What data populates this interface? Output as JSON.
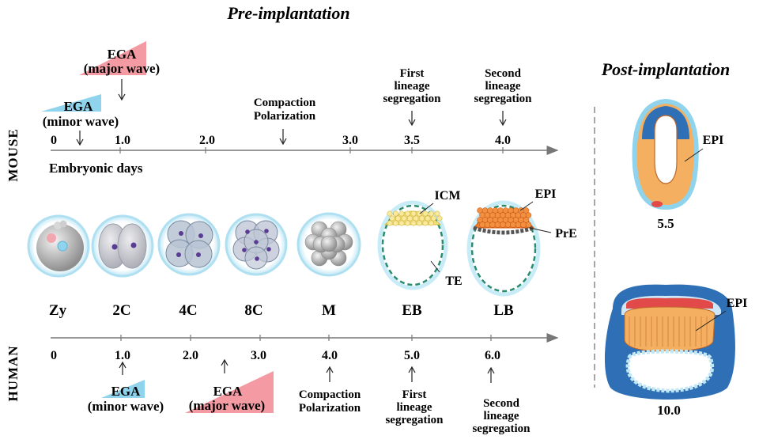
{
  "titles": {
    "pre": "Pre-implantation",
    "post": "Post-implantation"
  },
  "colors": {
    "egaMinor": "#8fd3ec",
    "egaMajor": "#f39aa3",
    "zonaRing": "#c8ecf7",
    "teDash": "#2a8c6e",
    "icm": "#f0dc7a",
    "epi": "#f08030",
    "pre": "#555555",
    "postBlue": "#2e6fb5",
    "postOrange": "#f4b060",
    "postRed": "#e24a4a"
  },
  "mouse": {
    "side_label": "MOUSE",
    "axis_label": "Embryonic days",
    "ticks": [
      "0",
      "1.0",
      "2.0",
      "3.0",
      "3.5",
      "4.0"
    ],
    "ega_minor": {
      "line1": "EGA",
      "line2": "(minor wave)"
    },
    "ega_major": {
      "line1": "EGA",
      "line2": "(major wave)"
    },
    "compaction": {
      "line1": "Compaction",
      "line2": "Polarization"
    },
    "first": {
      "line1": "First",
      "line2": "lineage",
      "line3": "segregation"
    },
    "second": {
      "line1": "Second",
      "line2": "lineage",
      "line3": "segregation"
    }
  },
  "human": {
    "side_label": "HUMAN",
    "ticks": [
      "0",
      "1.0",
      "2.0",
      "3.0",
      "4.0",
      "5.0",
      "6.0"
    ],
    "ega_minor": {
      "line1": "EGA",
      "line2": "(minor wave)"
    },
    "ega_major": {
      "line1": "EGA",
      "line2": "(major wave)"
    },
    "compaction": {
      "line1": "Compaction",
      "line2": "Polarization"
    },
    "first": {
      "line1": "First",
      "line2": "lineage",
      "line3": "segregation"
    },
    "second": {
      "line1": "Second",
      "line2": "lineage",
      "line3": "segregation"
    }
  },
  "stages": [
    "Zy",
    "2C",
    "4C",
    "8C",
    "M",
    "EB",
    "LB"
  ],
  "embryo_labels": {
    "icm": "ICM",
    "te": "TE",
    "epi": "EPI",
    "pre": "PrE"
  },
  "post_labels": {
    "mouse_epi": "EPI",
    "mouse_day": "5.5",
    "human_epi": "EPI",
    "human_day": "10.0"
  }
}
